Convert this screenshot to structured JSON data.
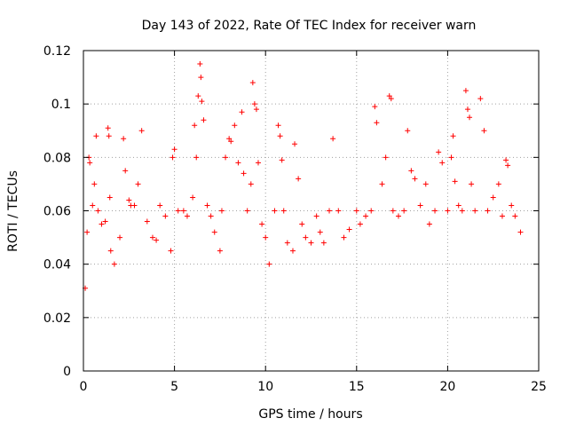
{
  "chart_data": {
    "type": "scatter",
    "title": "Day 143 of 2022, Rate Of TEC Index for receiver warn",
    "xlabel": "GPS time / hours",
    "ylabel": "ROTI / TECUs",
    "xlim": [
      0,
      25
    ],
    "ylim": [
      0,
      0.12
    ],
    "x_ticks": [
      0,
      5,
      10,
      15,
      20,
      25
    ],
    "y_ticks": [
      0,
      0.02,
      0.04,
      0.06,
      0.08,
      0.1,
      0.12
    ],
    "x_tick_labels": [
      "0",
      "5",
      "10",
      "15",
      "20",
      "25"
    ],
    "y_tick_labels": [
      "0",
      "0.02",
      "0.04",
      "0.06",
      "0.08",
      "0.1",
      "0.12"
    ],
    "grid": true,
    "marker": "+",
    "color": "#ff0000",
    "series": [
      {
        "points": [
          [
            0.1,
            0.031
          ],
          [
            0.2,
            0.052
          ],
          [
            0.3,
            0.08
          ],
          [
            0.35,
            0.078
          ],
          [
            0.5,
            0.062
          ],
          [
            0.6,
            0.07
          ],
          [
            0.7,
            0.088
          ],
          [
            0.8,
            0.06
          ],
          [
            1.0,
            0.055
          ],
          [
            1.2,
            0.056
          ],
          [
            1.35,
            0.091
          ],
          [
            1.4,
            0.088
          ],
          [
            1.45,
            0.065
          ],
          [
            1.5,
            0.045
          ],
          [
            1.7,
            0.04
          ],
          [
            2.0,
            0.05
          ],
          [
            2.2,
            0.087
          ],
          [
            2.3,
            0.075
          ],
          [
            2.5,
            0.064
          ],
          [
            2.6,
            0.062
          ],
          [
            2.8,
            0.062
          ],
          [
            3.0,
            0.07
          ],
          [
            3.2,
            0.09
          ],
          [
            3.5,
            0.056
          ],
          [
            3.8,
            0.05
          ],
          [
            4.0,
            0.049
          ],
          [
            4.2,
            0.062
          ],
          [
            4.5,
            0.058
          ],
          [
            4.8,
            0.045
          ],
          [
            4.9,
            0.08
          ],
          [
            5.0,
            0.083
          ],
          [
            5.2,
            0.06
          ],
          [
            5.5,
            0.06
          ],
          [
            5.7,
            0.058
          ],
          [
            6.0,
            0.065
          ],
          [
            6.1,
            0.092
          ],
          [
            6.2,
            0.08
          ],
          [
            6.3,
            0.103
          ],
          [
            6.4,
            0.115
          ],
          [
            6.45,
            0.11
          ],
          [
            6.5,
            0.101
          ],
          [
            6.6,
            0.094
          ],
          [
            6.8,
            0.062
          ],
          [
            7.0,
            0.058
          ],
          [
            7.2,
            0.052
          ],
          [
            7.5,
            0.045
          ],
          [
            7.6,
            0.06
          ],
          [
            7.8,
            0.08
          ],
          [
            8.0,
            0.087
          ],
          [
            8.1,
            0.086
          ],
          [
            8.3,
            0.092
          ],
          [
            8.5,
            0.078
          ],
          [
            8.7,
            0.097
          ],
          [
            8.8,
            0.074
          ],
          [
            9.0,
            0.06
          ],
          [
            9.2,
            0.07
          ],
          [
            9.3,
            0.108
          ],
          [
            9.4,
            0.1
          ],
          [
            9.5,
            0.098
          ],
          [
            9.6,
            0.078
          ],
          [
            9.8,
            0.055
          ],
          [
            10.0,
            0.05
          ],
          [
            10.2,
            0.04
          ],
          [
            10.5,
            0.06
          ],
          [
            10.7,
            0.092
          ],
          [
            10.8,
            0.088
          ],
          [
            10.9,
            0.079
          ],
          [
            11.0,
            0.06
          ],
          [
            11.2,
            0.048
          ],
          [
            11.5,
            0.045
          ],
          [
            11.6,
            0.085
          ],
          [
            11.8,
            0.072
          ],
          [
            12.0,
            0.055
          ],
          [
            12.2,
            0.05
          ],
          [
            12.5,
            0.048
          ],
          [
            12.8,
            0.058
          ],
          [
            13.0,
            0.052
          ],
          [
            13.2,
            0.048
          ],
          [
            13.5,
            0.06
          ],
          [
            13.7,
            0.087
          ],
          [
            14.0,
            0.06
          ],
          [
            14.3,
            0.05
          ],
          [
            14.6,
            0.053
          ],
          [
            15.0,
            0.06
          ],
          [
            15.2,
            0.055
          ],
          [
            15.5,
            0.058
          ],
          [
            15.8,
            0.06
          ],
          [
            16.0,
            0.099
          ],
          [
            16.1,
            0.093
          ],
          [
            16.4,
            0.07
          ],
          [
            16.6,
            0.08
          ],
          [
            16.8,
            0.103
          ],
          [
            16.9,
            0.102
          ],
          [
            17.0,
            0.06
          ],
          [
            17.3,
            0.058
          ],
          [
            17.6,
            0.06
          ],
          [
            17.8,
            0.09
          ],
          [
            18.0,
            0.075
          ],
          [
            18.2,
            0.072
          ],
          [
            18.5,
            0.062
          ],
          [
            18.8,
            0.07
          ],
          [
            19.0,
            0.055
          ],
          [
            19.3,
            0.06
          ],
          [
            19.5,
            0.082
          ],
          [
            19.7,
            0.078
          ],
          [
            20.0,
            0.06
          ],
          [
            20.2,
            0.08
          ],
          [
            20.3,
            0.088
          ],
          [
            20.4,
            0.071
          ],
          [
            20.6,
            0.062
          ],
          [
            20.8,
            0.06
          ],
          [
            21.0,
            0.105
          ],
          [
            21.1,
            0.098
          ],
          [
            21.2,
            0.095
          ],
          [
            21.3,
            0.07
          ],
          [
            21.5,
            0.06
          ],
          [
            21.8,
            0.102
          ],
          [
            22.0,
            0.09
          ],
          [
            22.2,
            0.06
          ],
          [
            22.5,
            0.065
          ],
          [
            22.8,
            0.07
          ],
          [
            23.0,
            0.058
          ],
          [
            23.2,
            0.079
          ],
          [
            23.3,
            0.077
          ],
          [
            23.5,
            0.062
          ],
          [
            23.7,
            0.058
          ],
          [
            24.0,
            0.052
          ]
        ]
      }
    ]
  }
}
